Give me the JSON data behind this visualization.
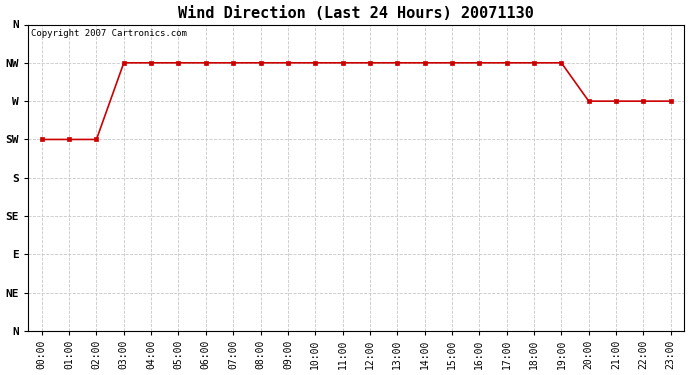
{
  "title": "Wind Direction (Last 24 Hours) 20071130",
  "copyright_text": "Copyright 2007 Cartronics.com",
  "line_color": "#cc0000",
  "marker": "s",
  "marker_size": 3,
  "background_color": "#ffffff",
  "grid_color": "#c8c8c8",
  "hours": [
    0,
    1,
    2,
    3,
    4,
    5,
    6,
    7,
    8,
    9,
    10,
    11,
    12,
    13,
    14,
    15,
    16,
    17,
    18,
    19,
    20,
    21,
    22,
    23
  ],
  "values": [
    225,
    225,
    225,
    315,
    315,
    315,
    315,
    315,
    315,
    315,
    315,
    315,
    315,
    315,
    315,
    315,
    315,
    315,
    315,
    315,
    270,
    270,
    270,
    270
  ],
  "yticks_values": [
    360,
    315,
    270,
    225,
    180,
    135,
    90,
    45,
    0
  ],
  "yticks_labels": [
    "N",
    "NW",
    "W",
    "SW",
    "S",
    "SE",
    "E",
    "NE",
    "N"
  ],
  "ylim": [
    0,
    360
  ],
  "xlim_min": -0.5,
  "xlim_max": 23.5,
  "title_fontsize": 11,
  "tick_fontsize": 7,
  "ytick_fontsize": 8
}
